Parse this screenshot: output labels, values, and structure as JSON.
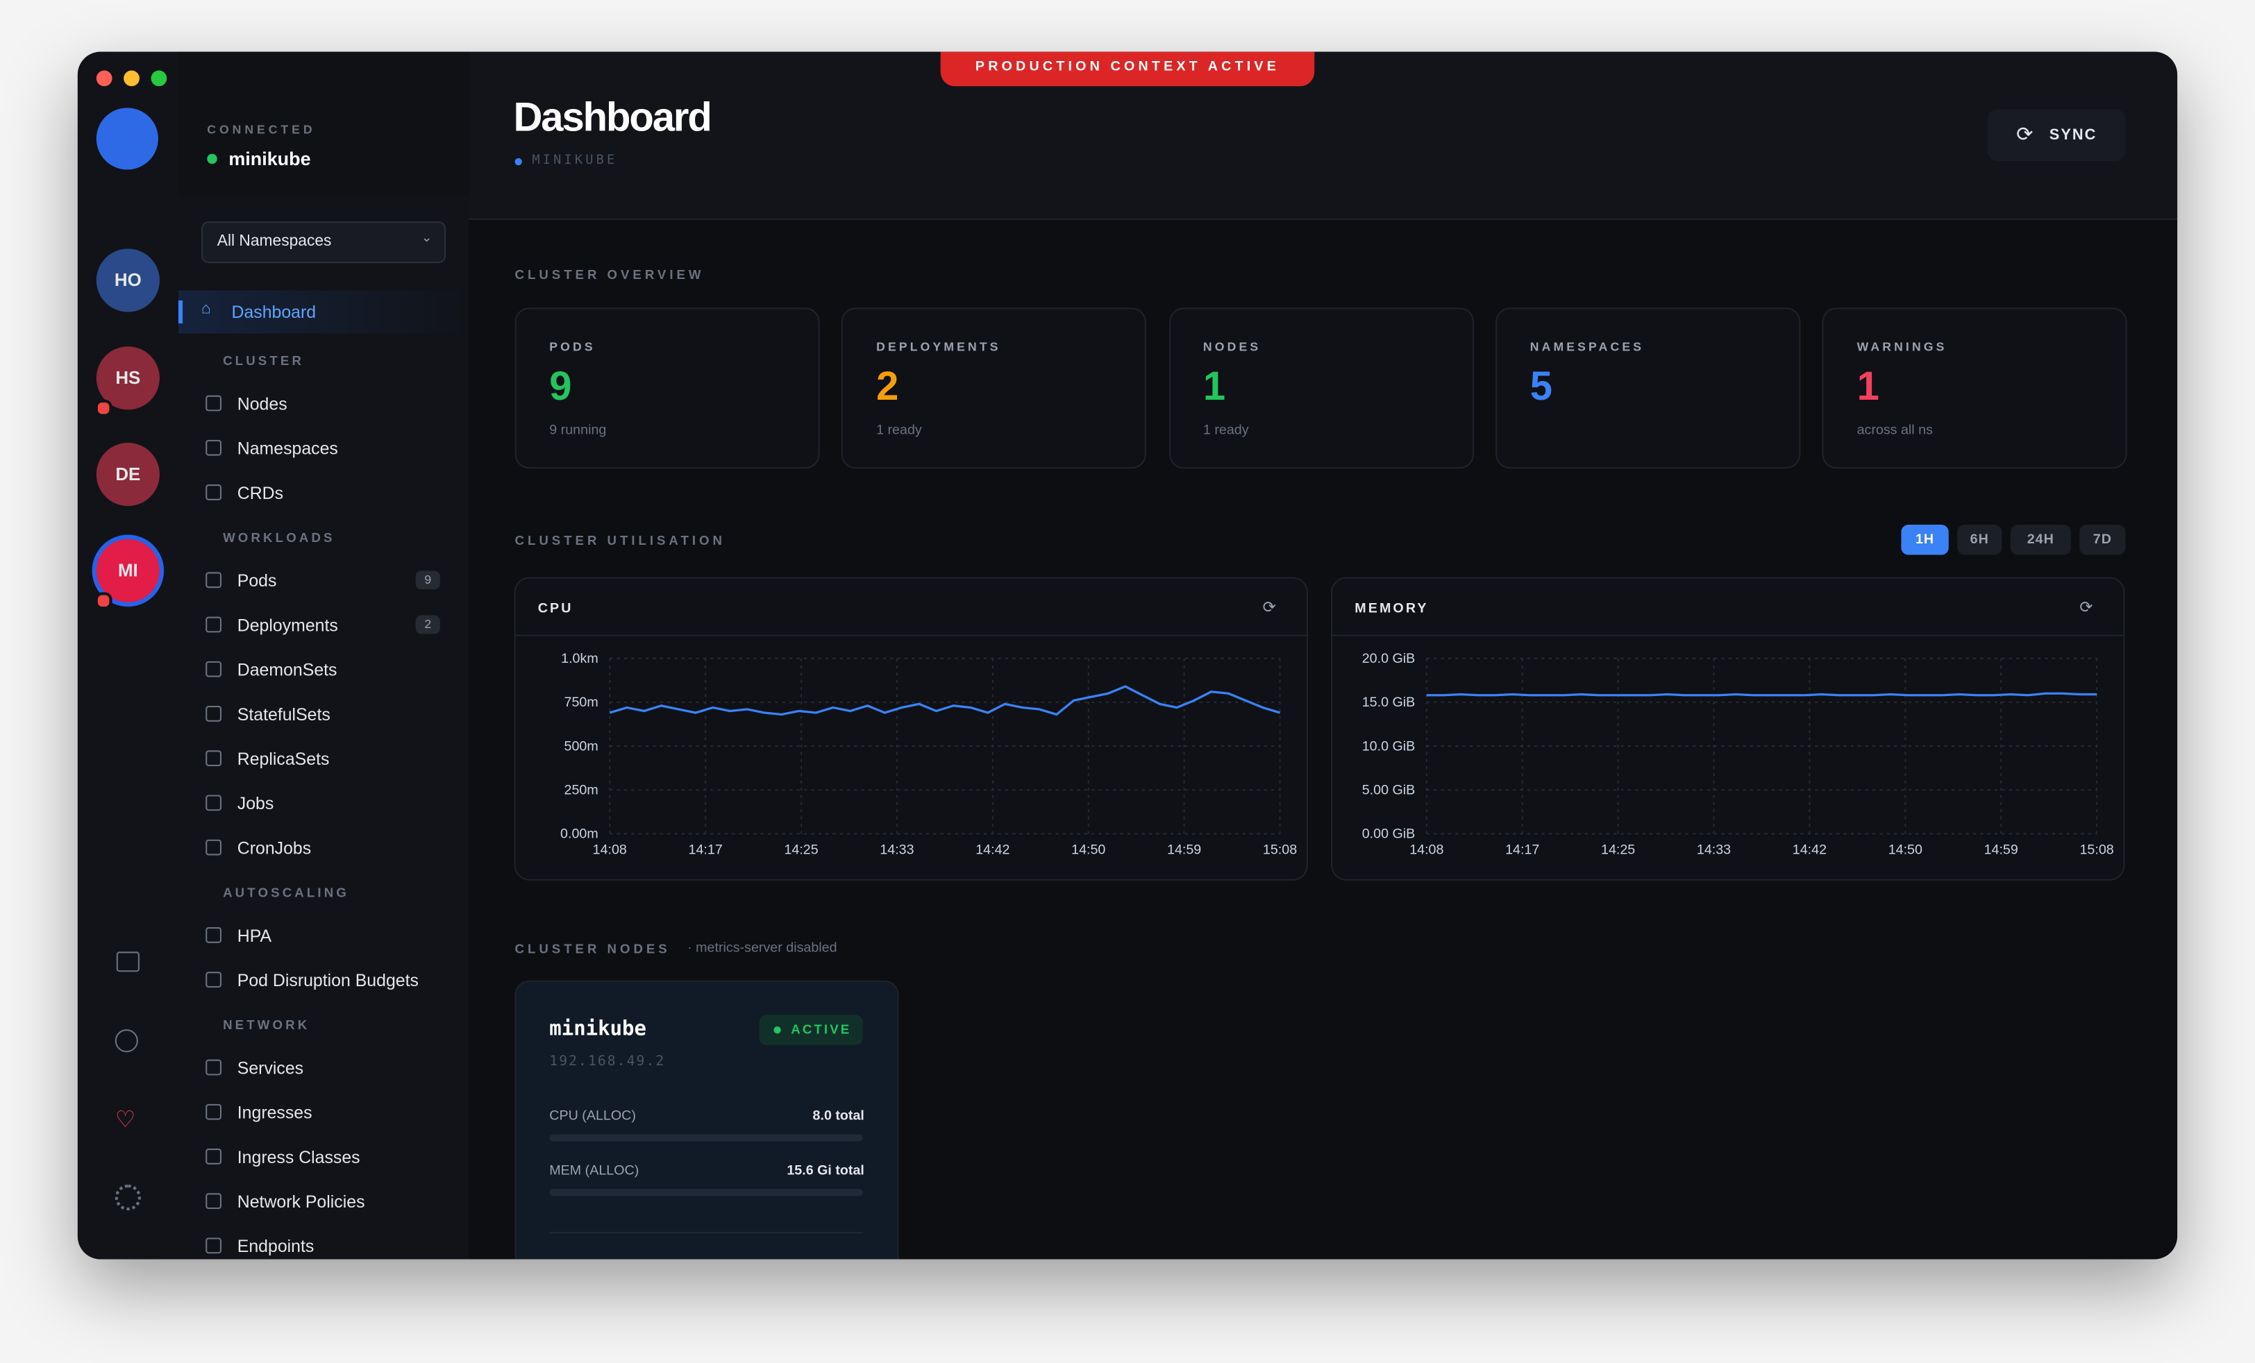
{
  "banner": "PRODUCTION CONTEXT ACTIVE",
  "rail": {
    "contexts": [
      "HO",
      "HS",
      "DE",
      "MI"
    ]
  },
  "sidebar": {
    "status_label": "CONNECTED",
    "context": "minikube",
    "namespace": "All Namespaces",
    "active": "Dashboard",
    "sections": [
      {
        "title": "CLUSTER",
        "items": [
          {
            "label": "Nodes"
          },
          {
            "label": "Namespaces"
          },
          {
            "label": "CRDs"
          }
        ]
      },
      {
        "title": "WORKLOADS",
        "items": [
          {
            "label": "Pods",
            "count": 9
          },
          {
            "label": "Deployments",
            "count": 2
          },
          {
            "label": "DaemonSets"
          },
          {
            "label": "StatefulSets"
          },
          {
            "label": "ReplicaSets"
          },
          {
            "label": "Jobs"
          },
          {
            "label": "CronJobs"
          }
        ]
      },
      {
        "title": "AUTOSCALING",
        "items": [
          {
            "label": "HPA"
          },
          {
            "label": "Pod Disruption Budgets"
          }
        ]
      },
      {
        "title": "NETWORK",
        "items": [
          {
            "label": "Services"
          },
          {
            "label": "Ingresses"
          },
          {
            "label": "Ingress Classes"
          },
          {
            "label": "Network Policies"
          },
          {
            "label": "Endpoints"
          }
        ]
      }
    ]
  },
  "header": {
    "title": "Dashboard",
    "context": "MINIKUBE",
    "button": "SYNC"
  },
  "overview": {
    "title": "CLUSTER OVERVIEW",
    "cards": [
      {
        "label": "PODS",
        "value": 9,
        "sub": "9 running",
        "color": "#22c55e"
      },
      {
        "label": "DEPLOYMENTS",
        "value": 2,
        "sub": "1 ready",
        "color": "#f59e0b"
      },
      {
        "label": "NODES",
        "value": 1,
        "sub": "1 ready",
        "color": "#22c55e"
      },
      {
        "label": "NAMESPACES",
        "value": 5,
        "color": "#3b82f6"
      },
      {
        "label": "WARNINGS",
        "value": 1,
        "sub": "across all ns",
        "color": "#f43f5e"
      }
    ]
  },
  "utilisation": {
    "title": "CLUSTER UTILISATION",
    "ranges": [
      "1H",
      "6H",
      "24H",
      "7D"
    ],
    "active_range": "1H",
    "charts": [
      {
        "type": "line",
        "title": "CPU",
        "color": "#3b82f6",
        "ylim": [
          0,
          1000
        ],
        "yticks": [
          {
            "value": 0,
            "label": "0.00m"
          },
          {
            "value": 250,
            "label": "250m"
          },
          {
            "value": 500,
            "label": "500m"
          },
          {
            "value": 750,
            "label": "750m"
          },
          {
            "value": 1000,
            "label": "1.0km"
          }
        ],
        "xticks": [
          "14:08",
          "14:17",
          "14:25",
          "14:33",
          "14:42",
          "14:50",
          "14:59",
          "15:08"
        ],
        "values": [
          690,
          720,
          700,
          730,
          710,
          690,
          720,
          700,
          710,
          690,
          680,
          700,
          690,
          720,
          700,
          730,
          690,
          720,
          740,
          700,
          730,
          720,
          690,
          740,
          720,
          710,
          680,
          760,
          780,
          800,
          840,
          790,
          740,
          720,
          760,
          810,
          800,
          760,
          720,
          690
        ]
      },
      {
        "type": "line",
        "title": "MEMORY",
        "color": "#3b82f6",
        "ylim": [
          0,
          20
        ],
        "yticks": [
          {
            "value": 0,
            "label": "0.00 GiB"
          },
          {
            "value": 5,
            "label": "5.00 GiB"
          },
          {
            "value": 10,
            "label": "10.0 GiB"
          },
          {
            "value": 15,
            "label": "15.0 GiB"
          },
          {
            "value": 20,
            "label": "20.0 GiB"
          }
        ],
        "xticks": [
          "14:08",
          "14:17",
          "14:25",
          "14:33",
          "14:42",
          "14:50",
          "14:59",
          "15:08"
        ],
        "values": [
          15.8,
          15.8,
          15.9,
          15.8,
          15.8,
          15.9,
          15.8,
          15.8,
          15.8,
          15.9,
          15.8,
          15.8,
          15.8,
          15.8,
          15.9,
          15.8,
          15.8,
          15.8,
          15.9,
          15.8,
          15.8,
          15.8,
          15.8,
          15.9,
          15.8,
          15.8,
          15.8,
          15.9,
          15.8,
          15.8,
          15.8,
          15.9,
          15.8,
          15.8,
          15.9,
          15.8,
          16.0,
          16.0,
          15.9,
          15.9
        ]
      }
    ]
  },
  "nodes": {
    "title": "CLUSTER NODES",
    "note": "· metrics-server disabled",
    "cards": [
      {
        "name": "minikube",
        "status": "ACTIVE",
        "ip": "192.168.49.2",
        "cpu_label": "CPU (ALLOC)",
        "cpu_total": "8.0 total",
        "mem_label": "MEM (ALLOC)",
        "mem_total": "15.6 Gi total"
      }
    ]
  }
}
